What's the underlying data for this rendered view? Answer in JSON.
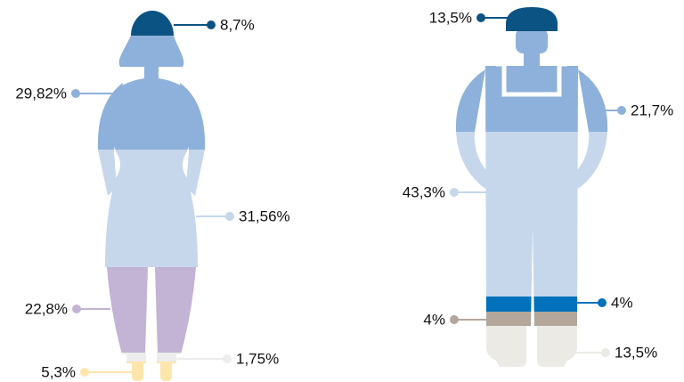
{
  "chart_data": [
    {
      "type": "pictogram",
      "values": [
        8.7,
        29.82,
        31.56,
        22.8,
        1.75,
        5.3
      ],
      "value_labels": [
        "8,7%",
        "29,82%",
        "31,56%",
        "22,8%",
        "1,75%",
        "5,3%"
      ],
      "colors": [
        "#0b5383",
        "#8db1da",
        "#c6d7ec",
        "#c3b3d5",
        "#ededed",
        "#fde6ab"
      ]
    },
    {
      "type": "pictogram",
      "values": [
        13.5,
        21.7,
        43.3,
        4,
        4,
        13.5
      ],
      "value_labels": [
        "13,5%",
        "21,7%",
        "43,3%",
        "4%",
        "4%",
        "13,5%"
      ],
      "colors": [
        "#0b5383",
        "#8db1da",
        "#c6d7ec",
        "#0071bb",
        "#b3a79b",
        "#ebeae5"
      ]
    }
  ]
}
